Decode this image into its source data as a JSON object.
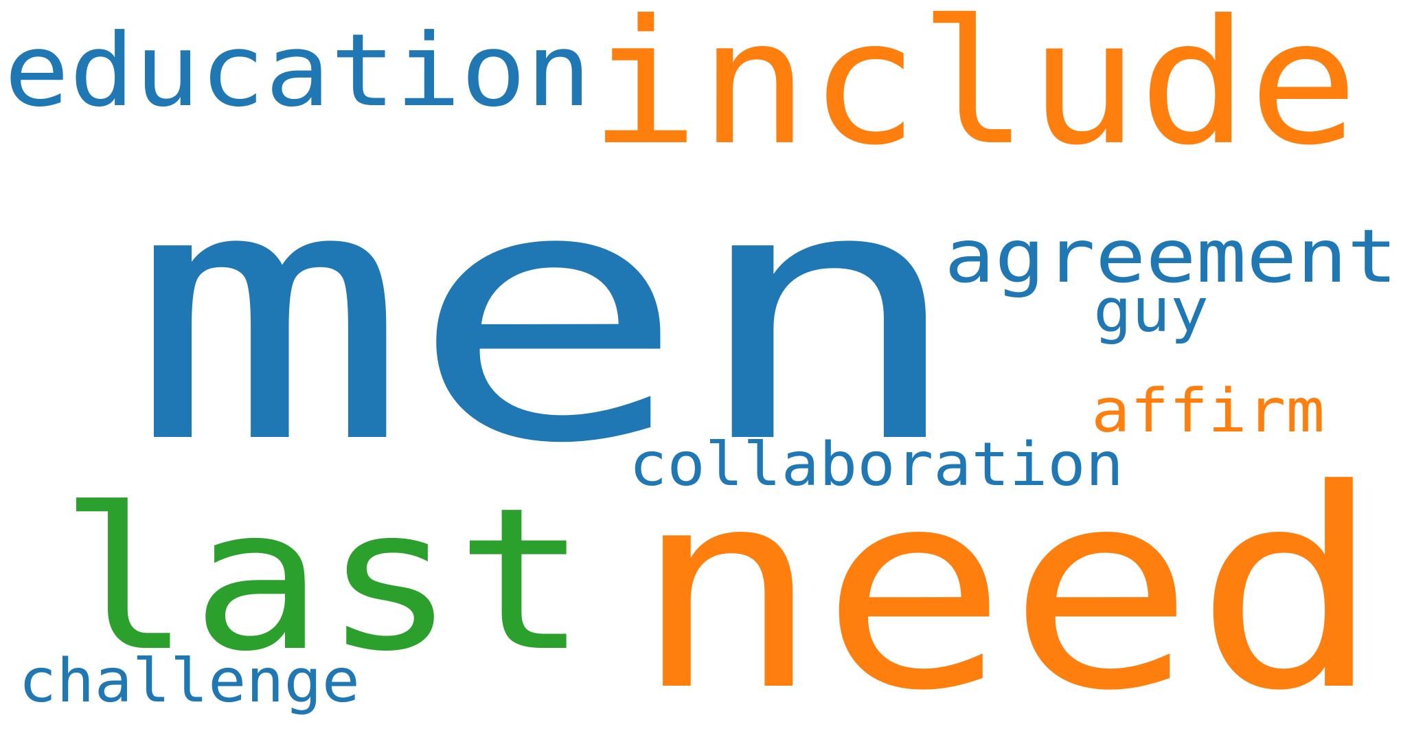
{
  "palette": {
    "blue": "#1f77b4",
    "orange": "#ff7f0e",
    "green": "#2ca02c",
    "background": "#ffffff"
  },
  "words": {
    "men": "men",
    "include": "include",
    "need": "need",
    "last": "last",
    "education": "education",
    "agreement": "agreement",
    "guy": "guy",
    "affirm": "affirm",
    "collaboration": "collaboration",
    "challenge": "challenge"
  },
  "word_colors": {
    "men": "blue",
    "include": "orange",
    "need": "orange",
    "last": "green",
    "education": "blue",
    "agreement": "blue",
    "guy": "blue",
    "affirm": "orange",
    "collaboration": "blue",
    "challenge": "blue"
  }
}
